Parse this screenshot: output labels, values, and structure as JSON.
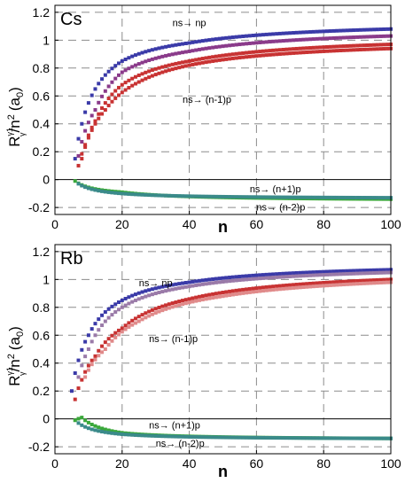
{
  "chart_data": [
    {
      "type": "scatter",
      "panel_label": "Cs",
      "xlabel": "n",
      "ylabel_main": "R",
      "ylabel_sup": "γ1",
      "ylabel_sub": "γ",
      "ylabel_rest": "/n",
      "ylabel_exp": "2",
      "ylabel_unit": "(a",
      "ylabel_unit_sub": "0",
      "ylabel_unit_close": ")",
      "xlim": [
        0,
        100
      ],
      "ylim": [
        -0.25,
        1.25
      ],
      "xticks": [
        0,
        20,
        40,
        60,
        80,
        100
      ],
      "yticks": [
        -0.2,
        0,
        0.2,
        0.4,
        0.6,
        0.8,
        1,
        1.2
      ],
      "grid": true,
      "annotations": [
        {
          "text": "ns→ np",
          "x": 35,
          "y": 1.1
        },
        {
          "text": "ns→ (n-1)p",
          "x": 38,
          "y": 0.55
        },
        {
          "text": "ns→ (n+1)p",
          "x": 58,
          "y": -0.09
        },
        {
          "text": "ns→ (n-2)p",
          "x": 60,
          "y": -0.22
        }
      ],
      "series": [
        {
          "color": "#3a3aa8",
          "x_start": 6,
          "x_end": 100,
          "y_inf": 1.13,
          "y_at": [
            [
              6,
              0.15
            ],
            [
              8,
              0.4
            ],
            [
              10,
              0.55
            ],
            [
              20,
              0.85
            ],
            [
              40,
              0.98
            ],
            [
              100,
              1.08
            ]
          ]
        },
        {
          "color": "#8a3a8a",
          "x_start": 7,
          "x_end": 100,
          "y_inf": 1.08,
          "y_at": [
            [
              7,
              0.17
            ],
            [
              9,
              0.35
            ],
            [
              12,
              0.5
            ],
            [
              20,
              0.77
            ],
            [
              40,
              0.92
            ],
            [
              100,
              1.03
            ]
          ]
        },
        {
          "color": "#c83232",
          "x_start": 7,
          "x_end": 100,
          "y_inf": 1.02,
          "y_at": [
            [
              7,
              0.1
            ],
            [
              9,
              0.25
            ],
            [
              12,
              0.42
            ],
            [
              20,
              0.68
            ],
            [
              40,
              0.85
            ],
            [
              100,
              0.97
            ]
          ]
        },
        {
          "color": "#c83232",
          "x_start": 8,
          "x_end": 100,
          "y_inf": 0.99,
          "y_at": [
            [
              8,
              0.15
            ],
            [
              10,
              0.3
            ],
            [
              15,
              0.5
            ],
            [
              25,
              0.7
            ],
            [
              50,
              0.86
            ],
            [
              100,
              0.94
            ]
          ]
        },
        {
          "color": "#3aa83a",
          "x_start": 6,
          "x_end": 100,
          "y_inf": -0.14,
          "y_at": [
            [
              6,
              -0.01
            ],
            [
              20,
              -0.09
            ],
            [
              100,
              -0.14
            ]
          ]
        },
        {
          "color": "#3a8a8a",
          "x_start": 7,
          "x_end": 100,
          "y_inf": -0.13,
          "y_at": [
            [
              7,
              -0.03
            ],
            [
              20,
              -0.1
            ],
            [
              100,
              -0.13
            ]
          ]
        }
      ]
    },
    {
      "type": "scatter",
      "panel_label": "Rb",
      "xlabel": "n",
      "ylabel_main": "R",
      "ylabel_sup": "γ1",
      "ylabel_sub": "γ",
      "ylabel_rest": "/n",
      "ylabel_exp": "2",
      "ylabel_unit": "(a",
      "ylabel_unit_sub": "0",
      "ylabel_unit_close": ")",
      "xlim": [
        0,
        100
      ],
      "ylim": [
        -0.25,
        1.25
      ],
      "xticks": [
        0,
        20,
        40,
        60,
        80,
        100
      ],
      "yticks": [
        -0.2,
        0,
        0.2,
        0.4,
        0.6,
        0.8,
        1,
        1.2
      ],
      "grid": true,
      "annotations": [
        {
          "text": "ns→ np",
          "x": 25,
          "y": 0.95
        },
        {
          "text": "ns→ (n-1)p",
          "x": 28,
          "y": 0.55
        },
        {
          "text": "ns→ (n+1)p",
          "x": 28,
          "y": -0.07
        },
        {
          "text": "ns→ (n-2)p",
          "x": 30,
          "y": -0.2
        }
      ],
      "series": [
        {
          "color": "#3a3aa8",
          "x_start": 5,
          "x_end": 100,
          "y_inf": 1.12,
          "y_at": [
            [
              5,
              0.2
            ],
            [
              7,
              0.42
            ],
            [
              10,
              0.6
            ],
            [
              20,
              0.85
            ],
            [
              40,
              0.98
            ],
            [
              100,
              1.07
            ]
          ]
        },
        {
          "color": "#9a7aa8",
          "x_start": 7,
          "x_end": 100,
          "y_inf": 1.09,
          "y_at": [
            [
              7,
              0.3
            ],
            [
              10,
              0.5
            ],
            [
              20,
              0.8
            ],
            [
              40,
              0.95
            ],
            [
              100,
              1.05
            ]
          ]
        },
        {
          "color": "#c83232",
          "x_start": 6,
          "x_end": 100,
          "y_inf": 1.07,
          "y_at": [
            [
              6,
              0.14
            ],
            [
              8,
              0.28
            ],
            [
              12,
              0.45
            ],
            [
              20,
              0.65
            ],
            [
              40,
              0.86
            ],
            [
              100,
              1.0
            ]
          ]
        },
        {
          "color": "#e08a8a",
          "x_start": 9,
          "x_end": 100,
          "y_inf": 1.04,
          "y_at": [
            [
              9,
              0.3
            ],
            [
              15,
              0.5
            ],
            [
              25,
              0.7
            ],
            [
              50,
              0.88
            ],
            [
              100,
              0.98
            ]
          ]
        },
        {
          "color": "#3aa83a",
          "x_start": 6,
          "x_end": 100,
          "y_inf": -0.15,
          "y_at": [
            [
              6,
              -0.01
            ],
            [
              8,
              0.01
            ],
            [
              20,
              -0.1
            ],
            [
              100,
              -0.14
            ]
          ]
        },
        {
          "color": "#3a8a8a",
          "x_start": 7,
          "x_end": 100,
          "y_inf": -0.14,
          "y_at": [
            [
              7,
              -0.03
            ],
            [
              20,
              -0.11
            ],
            [
              100,
              -0.14
            ]
          ]
        }
      ]
    }
  ]
}
